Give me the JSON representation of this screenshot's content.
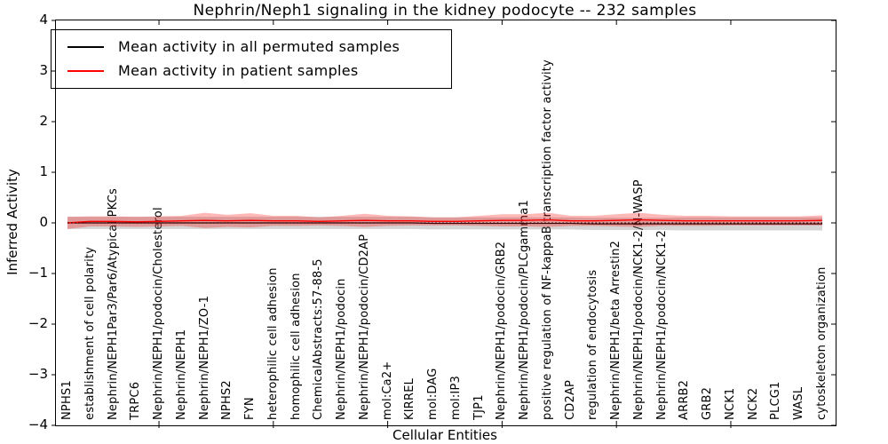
{
  "chart_data": {
    "type": "line",
    "title": "Nephrin/Neph1 signaling in the kidney podocyte -- 232 samples",
    "xlabel": "Cellular Entities",
    "ylabel": "Inferred Activity",
    "ylim": [
      -4,
      4
    ],
    "ytick_values": [
      4,
      3,
      2,
      1,
      0,
      -1,
      -2,
      -3,
      -4
    ],
    "ytick_labels": [
      "4",
      "3",
      "2",
      "1",
      "0",
      "−1",
      "−2",
      "−3",
      "−4"
    ],
    "xtick_entity_numbers": [
      5,
      10,
      15,
      20,
      25,
      30
    ],
    "grid": false,
    "legend_position": "upper left",
    "zero_line_style": "dotted",
    "categories": [
      "NPHS1",
      "establishment of cell polarity",
      "Nephrin/NEPH1Par3/Par6/Atypical PKCs",
      "TRPC6",
      "Nephrin/NEPH1/podocin/Cholesterol",
      "Nephrin/NEPH1",
      "Nephrin/NEPH1/ZO-1",
      "NPHS2",
      "FYN",
      "heterophilic cell adhesion",
      "homophilic cell adhesion",
      "ChemicalAbstracts:57-88-5",
      "Nephrin/NEPH1/podocin",
      "Nephrin/NEPH1/podocin/CD2AP",
      "mol:Ca2+",
      "KIRREL",
      "mol:DAG",
      "mol:IP3",
      "TJP1",
      "Nephrin/NEPH1/podocin/GRB2",
      "Nephrin/NEPH1/podocin/PLCgamma1",
      "positive regulation of NF-kappaB transcription factor activity",
      "CD2AP",
      "regulation of endocytosis",
      "Nephrin/NEPH1/beta Arrestin2",
      "Nephrin/NEPH1/podocin/NCK1-2/N-WASP",
      "Nephrin/NEPH1/podocin/NCK1-2",
      "ARRB2",
      "GRB2",
      "NCK1",
      "NCK2",
      "PLCG1",
      "WASL",
      "cytoskeleton organization"
    ],
    "series": [
      {
        "name": "Mean activity in all permuted samples",
        "color": "#000000",
        "band_color": "rgba(125,125,125,0.32)",
        "values": [
          0,
          0,
          0,
          0,
          0,
          0,
          0,
          0,
          0,
          0,
          0,
          0,
          0,
          0,
          0,
          0,
          -0.01,
          -0.01,
          -0.01,
          -0.01,
          -0.01,
          -0.01,
          -0.01,
          -0.02,
          -0.02,
          -0.02,
          -0.02,
          -0.02,
          -0.02,
          -0.02,
          -0.02,
          -0.02,
          -0.02,
          -0.02
        ],
        "band_halfwidth": [
          0.12,
          0.12,
          0.12,
          0.12,
          0.12,
          0.12,
          0.12,
          0.12,
          0.12,
          0.12,
          0.12,
          0.12,
          0.12,
          0.12,
          0.12,
          0.12,
          0.12,
          0.12,
          0.12,
          0.12,
          0.12,
          0.12,
          0.12,
          0.12,
          0.12,
          0.12,
          0.12,
          0.13,
          0.13,
          0.13,
          0.13,
          0.13,
          0.13,
          0.13
        ]
      },
      {
        "name": "Mean activity in patient samples",
        "color": "#ff0000",
        "band_color": "rgba(255,0,0,0.28)",
        "values": [
          0.0,
          0.03,
          0.03,
          0.02,
          0.03,
          0.04,
          0.05,
          0.04,
          0.05,
          0.04,
          0.04,
          0.03,
          0.04,
          0.05,
          0.04,
          0.04,
          0.03,
          0.03,
          0.04,
          0.05,
          0.05,
          0.06,
          0.04,
          0.04,
          0.05,
          0.06,
          0.05,
          0.04,
          0.04,
          0.04,
          0.04,
          0.04,
          0.04,
          0.05
        ],
        "band_halfwidth": [
          0.12,
          0.1,
          0.1,
          0.1,
          0.1,
          0.1,
          0.15,
          0.12,
          0.14,
          0.1,
          0.1,
          0.08,
          0.1,
          0.13,
          0.1,
          0.09,
          0.08,
          0.08,
          0.1,
          0.12,
          0.12,
          0.14,
          0.1,
          0.1,
          0.12,
          0.14,
          0.11,
          0.1,
          0.1,
          0.09,
          0.09,
          0.09,
          0.09,
          0.1
        ]
      }
    ]
  }
}
